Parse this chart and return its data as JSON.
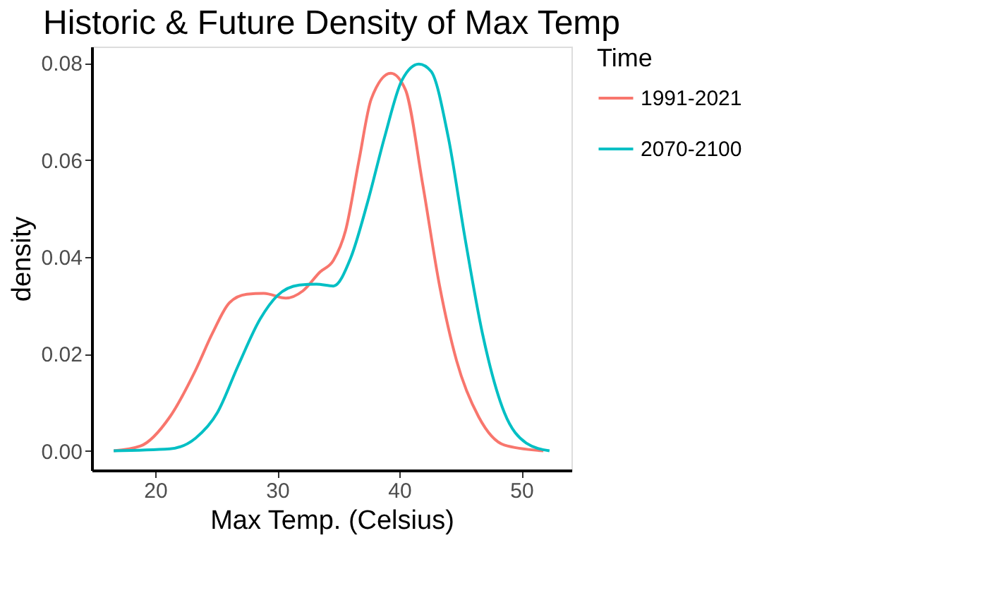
{
  "chart_data": {
    "type": "line",
    "title": "Historic & Future Density of Max Temp",
    "xlabel": "Max Temp. (Celsius)",
    "ylabel": "density",
    "legend_title": "Time",
    "legend": "right",
    "grid": false,
    "line_style": "solid",
    "marker": "none",
    "xlim": [
      14.8,
      54.1
    ],
    "xticks": [
      20,
      30,
      40,
      50
    ],
    "ylim": [
      -0.004,
      0.0834
    ],
    "yticks": [
      {
        "value": 0,
        "label": "0.00"
      },
      {
        "value": 0.02,
        "label": "0.02"
      },
      {
        "value": 0.04,
        "label": "0.04"
      },
      {
        "value": 0.06,
        "label": "0.06"
      },
      {
        "value": 0.08,
        "label": "0.08"
      }
    ],
    "series": [
      {
        "name": "1991-2021",
        "color": "#f8766d",
        "x": [
          16.6,
          18.8,
          21.2,
          23.3,
          24.7,
          26.1,
          27.5,
          28.9,
          30.7,
          32.1,
          33.5,
          34.6,
          35.6,
          36.7,
          37.7,
          39.3,
          40.5,
          41.9,
          43.3,
          44.7,
          46.5,
          48.6,
          51.8
        ],
        "values": [
          0,
          0.001,
          0.007,
          0.0166,
          0.0243,
          0.0306,
          0.0323,
          0.0325,
          0.0315,
          0.033,
          0.0369,
          0.0393,
          0.0455,
          0.06,
          0.0726,
          0.0779,
          0.0745,
          0.0552,
          0.034,
          0.0185,
          0.007,
          0.0012,
          0
        ]
      },
      {
        "name": "2070-2100",
        "color": "#00bfc4",
        "x": [
          16.6,
          21.2,
          23.3,
          25.1,
          26.8,
          28.6,
          30.0,
          31.8,
          33.2,
          34.6,
          36.0,
          37.4,
          38.8,
          40.2,
          41.6,
          42.6,
          44.0,
          45.4,
          46.8,
          48.6,
          50.4,
          52.3
        ],
        "values": [
          0,
          0.0004,
          0.0026,
          0.0079,
          0.0176,
          0.0272,
          0.032,
          0.0342,
          0.0344,
          0.034,
          0.0397,
          0.0513,
          0.0648,
          0.0764,
          0.0798,
          0.0783,
          0.0648,
          0.0436,
          0.0243,
          0.0079,
          0.0016,
          0
        ]
      }
    ]
  }
}
